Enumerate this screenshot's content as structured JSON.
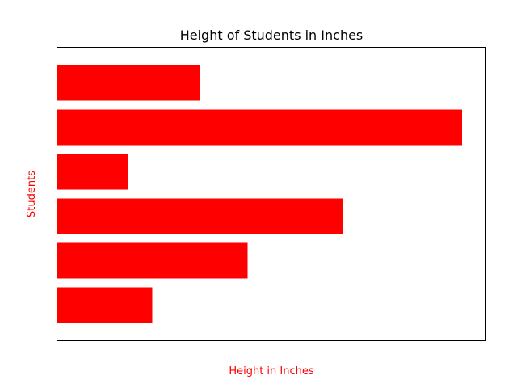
{
  "chart_data": {
    "type": "bar",
    "orientation": "horizontal",
    "title": "Height of Students in Inches",
    "xlabel": "Height in Inches",
    "ylabel": "Students",
    "categories": [
      "",
      "",
      "",
      "",
      "",
      ""
    ],
    "values": [
      20,
      40,
      60,
      15,
      85,
      30
    ],
    "xlim": [
      0,
      90
    ],
    "tick_labels_visible": false,
    "grid": false,
    "legend": "none",
    "bar_color": "#ff0000",
    "label_color": "#ff0000"
  }
}
